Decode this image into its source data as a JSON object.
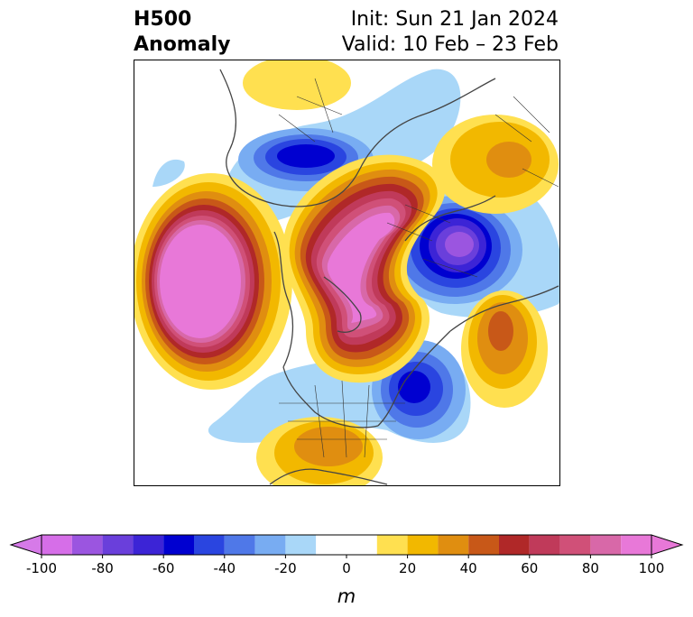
{
  "title": {
    "left_line1": "H500",
    "left_line2": "Anomaly",
    "init": "Init: Sun 21 Jan 2024",
    "valid": "Valid: 10 Feb – 23 Feb"
  },
  "colorbar": {
    "unit": "m",
    "ticks": [
      "-100",
      "-80",
      "-60",
      "-40",
      "-20",
      "0",
      "20",
      "40",
      "60",
      "80",
      "100"
    ],
    "tick_values": [
      -100,
      -80,
      -60,
      -40,
      -20,
      0,
      20,
      40,
      60,
      80,
      100
    ],
    "levels": [
      -100,
      -90,
      -80,
      -70,
      -60,
      -50,
      -40,
      -30,
      -20,
      -10,
      10,
      20,
      30,
      40,
      50,
      60,
      70,
      80,
      90,
      100
    ],
    "colors": [
      "#d66ee8",
      "#9b55e0",
      "#6a3fdb",
      "#3c24d6",
      "#0000d0",
      "#2a45e0",
      "#4f78e8",
      "#78acf2",
      "#a9d7f8",
      "#ffffff",
      "#ffe050",
      "#f2b800",
      "#e08e10",
      "#c85818",
      "#b02828",
      "#c03a5a",
      "#d05078",
      "#d868a8",
      "#e878d8"
    ],
    "extend_low_color": "#d67ae8",
    "extend_high_color": "#e878d8"
  },
  "map": {
    "projection": "north-polar-stereographic",
    "features": [
      "coastlines",
      "country-borders",
      "state-borders"
    ]
  }
}
